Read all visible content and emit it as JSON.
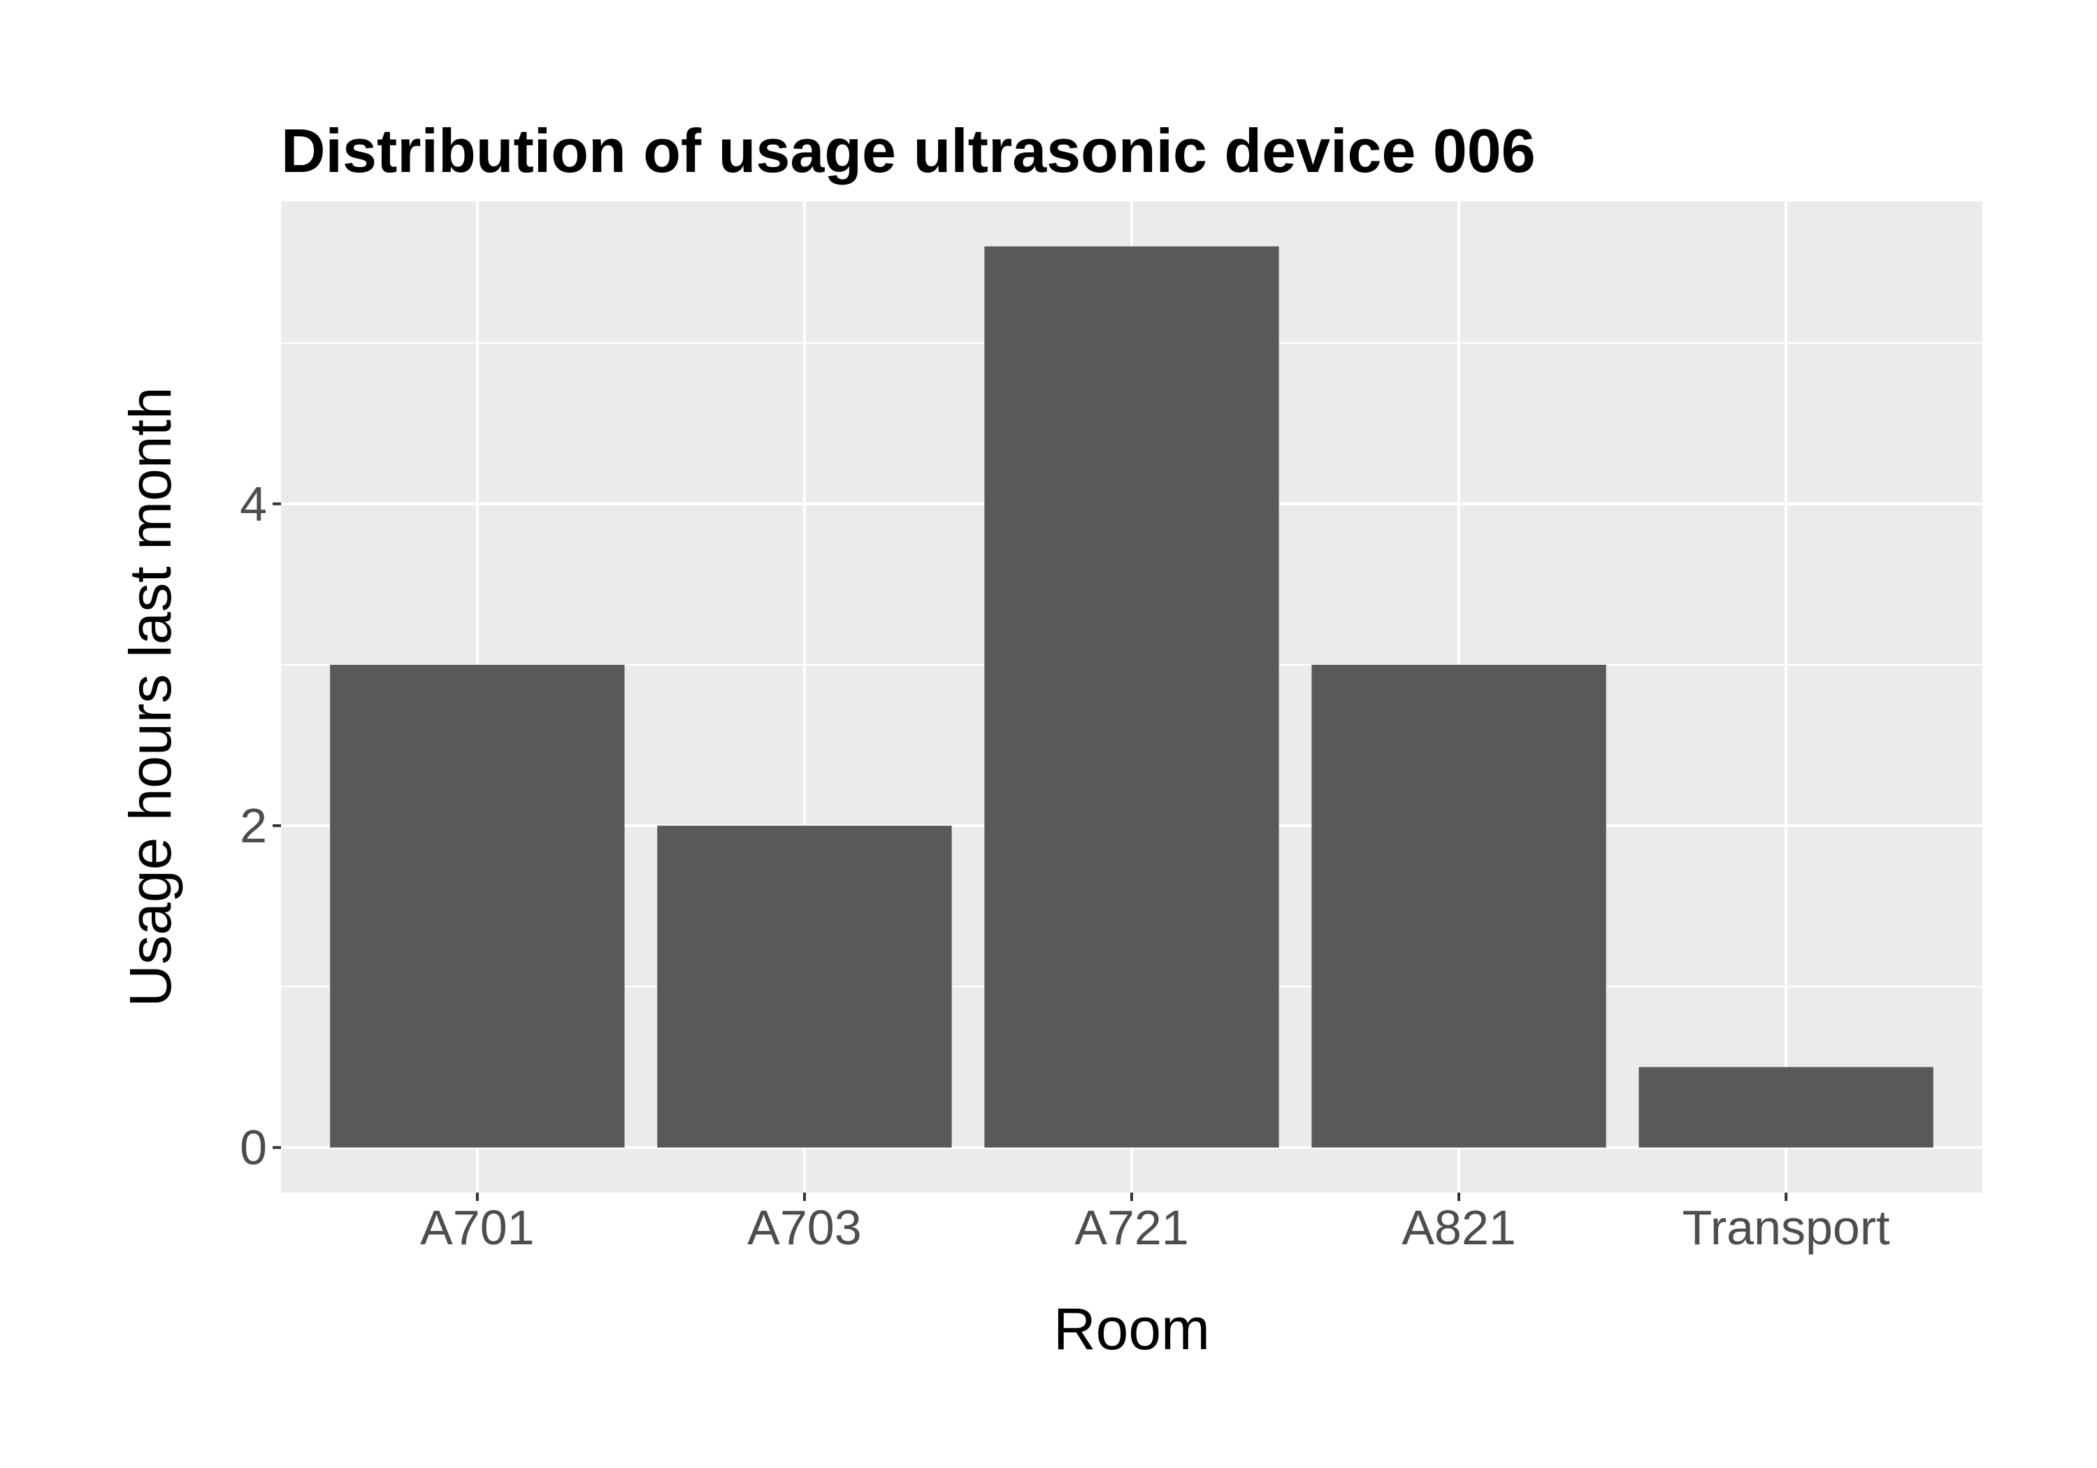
{
  "chart_data": {
    "type": "bar",
    "title": "Distribution of usage ultrasonic device 006",
    "xlabel": "Room",
    "ylabel": "Usage hours last month",
    "categories": [
      "A701",
      "A703",
      "A721",
      "A821",
      "Transport"
    ],
    "values": [
      3,
      2,
      5.6,
      3,
      0.5
    ],
    "ylim": [
      -0.28,
      5.88
    ],
    "yticks": [
      0,
      2,
      4
    ],
    "grid": true,
    "colors": {
      "bar": "#595959",
      "panel": "#ebebeb",
      "grid": "#ffffff",
      "tick_text": "#4d4d4d",
      "tick_mark": "#333333"
    }
  }
}
